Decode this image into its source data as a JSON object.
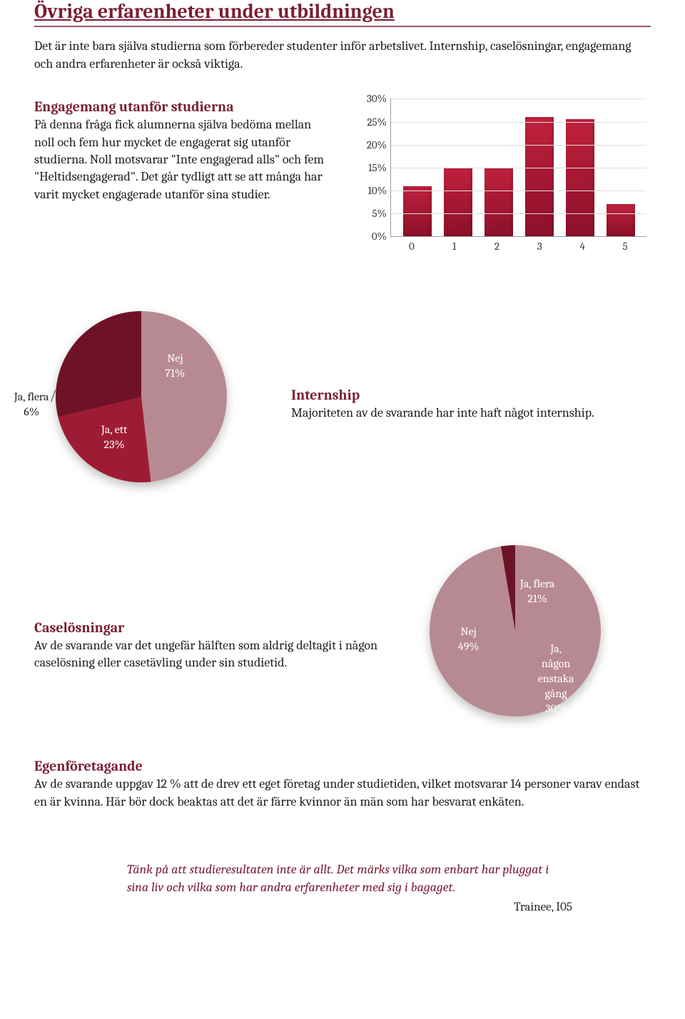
{
  "title": "Övriga erfarenheter under utbildningen",
  "intro": "Det är inte bara själva studierna som förbereder studenter inför arbetslivet. Internship, caselösningar, engagemang och andra erfarenheter är också viktiga.",
  "engagemang": {
    "heading": "Engagemang utanför studierna",
    "body": "På denna fråga fick alumnerna själva bedöma mellan noll och fem hur mycket de engagerat sig utanför studierna. Noll motsvarar \"Inte engagerad alls\" och fem \"Heltidsengagerad\". Det går tydligt att se att många har varit mycket engagerade utanför sina studier."
  },
  "bar_chart": {
    "type": "bar",
    "categories": [
      "0",
      "1",
      "2",
      "3",
      "4",
      "5"
    ],
    "values": [
      11,
      15,
      15,
      26,
      25.5,
      7
    ],
    "ymax": 30,
    "ytick_step": 5,
    "ytick_format": "{v}%",
    "bar_color_top": "#c0213d",
    "bar_color_bottom": "#8c1029",
    "grid_color": "#dedede",
    "axis_color": "#9c9c9c",
    "label_fontsize": 15,
    "background": "#ffffff"
  },
  "internship": {
    "heading": "Internship",
    "body": "Majoriteten av de svarande har inte haft något internship."
  },
  "pie_internship": {
    "type": "pie",
    "slices": [
      {
        "label": "Nej",
        "label2": "71%",
        "value": 71,
        "color": "#b78a93",
        "text_color": "#ffffff"
      },
      {
        "label": "Ja, ett",
        "label2": "23%",
        "value": 23,
        "color": "#9d1c33",
        "text_color": "#ffffff"
      },
      {
        "label": "Ja, flera",
        "label2": "6%",
        "value": 6,
        "color": "#6e1227",
        "text_color": "#222",
        "outside": true
      }
    ],
    "start_angle_deg": -82,
    "background": "#ffffff",
    "shadow": true
  },
  "caselosningar": {
    "heading": "Caselösningar",
    "body": "Av de svarande var det ungefär hälften som aldrig deltagit i någon caselösning eller casetävling under sin studietid."
  },
  "pie_case": {
    "type": "pie",
    "slices": [
      {
        "label": "Nej",
        "label2": "49%",
        "value": 49,
        "color": "#b78a93",
        "text_color": "#ffffff"
      },
      {
        "label": "Ja, flera",
        "label2": "21%",
        "value": 21,
        "color": "#6e1227",
        "text_color": "#ffffff"
      },
      {
        "label": "Ja,\nnågon\nenstaka\ngång",
        "label2": "30%",
        "value": 30,
        "color": "#9d1c33",
        "text_color": "#ffffff"
      }
    ],
    "start_angle_deg": 174,
    "background": "#ffffff",
    "shadow": true
  },
  "egenforetagande": {
    "heading": "Egenföretagande",
    "body": "Av de svarande uppgav 12 % att de drev ett eget företag under studietiden, vilket motsvarar 14 personer varav endast en är kvinna. Här bör dock beaktas att det är färre kvinnor än män som har besvarat enkäten."
  },
  "quote": {
    "text": "Tänk på att studieresultaten inte är allt. Det märks vilka som enbart har pluggat i sina liv och vilka som har andra erfarenheter med sig i bagaget.",
    "attr": "Trainee, I05",
    "color": "#7a1e35",
    "fontsize": 18
  },
  "yticks": [
    "0%",
    "5%",
    "10%",
    "15%",
    "20%",
    "25%",
    "30%"
  ]
}
